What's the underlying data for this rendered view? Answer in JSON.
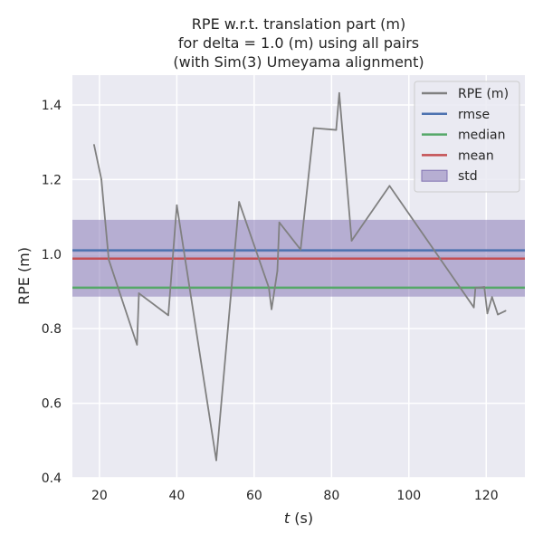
{
  "chart_data": {
    "type": "line",
    "title": [
      "RPE w.r.t. translation part (m)",
      "for delta = 1.0 (m) using all pairs",
      "(with Sim(3) Umeyama alignment)"
    ],
    "xlabel_italic": "t",
    "xlabel_rest": " (s)",
    "ylabel": "RPE (m)",
    "xlim": [
      13,
      130
    ],
    "ylim": [
      0.4,
      1.48
    ],
    "xticks": [
      20,
      40,
      60,
      80,
      100,
      120
    ],
    "yticks": [
      0.4,
      0.6,
      0.8,
      1.0,
      1.2,
      1.4
    ],
    "ytick_labels": [
      "0.4",
      "0.6",
      "0.8",
      "1.0",
      "1.2",
      "1.4"
    ],
    "grid": true,
    "legend_position": "top-right",
    "background_color": "#eaeaf2",
    "series": [
      {
        "name": "RPE (m)",
        "color": "#808080",
        "points": [
          [
            18.6,
            1.293
          ],
          [
            20.5,
            1.2
          ],
          [
            22.4,
            0.985
          ],
          [
            29.7,
            0.757
          ],
          [
            30.2,
            0.895
          ],
          [
            37.8,
            0.836
          ],
          [
            40.0,
            1.131
          ],
          [
            50.2,
            0.447
          ],
          [
            56.1,
            1.14
          ],
          [
            63.8,
            0.91
          ],
          [
            64.5,
            0.852
          ],
          [
            66.0,
            0.955
          ],
          [
            66.5,
            1.085
          ],
          [
            72.0,
            1.012
          ],
          [
            75.4,
            1.338
          ],
          [
            81.2,
            1.333
          ],
          [
            82.0,
            1.432
          ],
          [
            85.2,
            1.036
          ],
          [
            95.0,
            1.183
          ],
          [
            116.8,
            0.857
          ],
          [
            117.2,
            0.909
          ],
          [
            119.5,
            0.912
          ],
          [
            120.3,
            0.841
          ],
          [
            121.5,
            0.885
          ],
          [
            123.0,
            0.838
          ],
          [
            125.0,
            0.848
          ]
        ]
      }
    ],
    "stats": [
      {
        "name": "rmse",
        "value": 1.01,
        "color": "#4c72b0"
      },
      {
        "name": "median",
        "value": 0.91,
        "color": "#55a868"
      },
      {
        "name": "mean",
        "value": 0.988,
        "color": "#c44e52"
      }
    ],
    "std": {
      "name": "std",
      "low": 0.886,
      "high": 1.092,
      "color": "#8172b2",
      "opacity": 0.5
    }
  }
}
